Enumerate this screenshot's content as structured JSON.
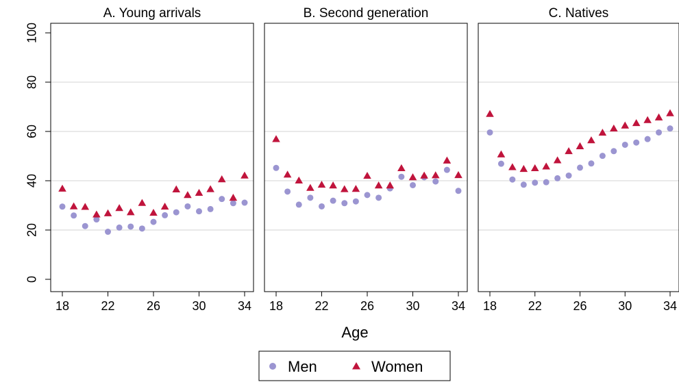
{
  "chart_data": {
    "type": "scatter",
    "xlabel": "Age",
    "ylabel": "",
    "x_ticks": [
      18,
      22,
      26,
      30,
      34
    ],
    "y_ticks": [
      0,
      20,
      40,
      60,
      80,
      100
    ],
    "ylim": [
      0,
      100
    ],
    "xlim": [
      17.3,
      35.3
    ],
    "grid": true,
    "legend_position": "bottom",
    "series_style": [
      {
        "name": "Men",
        "marker": "circle",
        "color": "#9b95d1"
      },
      {
        "name": "Women",
        "marker": "triangle",
        "color": "#c0143c"
      }
    ],
    "panels": [
      {
        "title": "A. Young arrivals",
        "x": [
          18,
          19,
          20,
          21,
          22,
          23,
          24,
          25,
          26,
          27,
          28,
          29,
          30,
          31,
          32,
          33,
          34
        ],
        "series": [
          {
            "name": "Men",
            "values": [
              29.5,
              25.9,
              21.6,
              24.3,
              19.3,
              21.0,
              21.4,
              20.6,
              23.3,
              26.0,
              27.2,
              29.6,
              27.6,
              28.5,
              32.6,
              30.9,
              31.1
            ]
          },
          {
            "name": "Women",
            "values": [
              36.8,
              29.6,
              29.4,
              26.3,
              26.8,
              28.9,
              27.2,
              31.0,
              27.0,
              29.5,
              36.5,
              34.2,
              35.1,
              36.6,
              40.6,
              33.1,
              42.1
            ]
          }
        ]
      },
      {
        "title": "B. Second generation",
        "x": [
          18,
          19,
          20,
          21,
          22,
          23,
          24,
          25,
          26,
          27,
          28,
          29,
          30,
          31,
          32,
          33,
          34
        ],
        "series": [
          {
            "name": "Men",
            "values": [
              45.2,
              35.6,
              30.3,
              33.1,
              29.6,
              31.9,
              30.9,
              31.6,
              34.2,
              33.1,
              36.9,
              41.6,
              38.2,
              41.4,
              39.7,
              44.4,
              35.9
            ]
          },
          {
            "name": "Women",
            "values": [
              56.9,
              42.5,
              40.1,
              37.1,
              38.4,
              38.1,
              36.6,
              36.7,
              42.0,
              38.1,
              38.1,
              45.1,
              41.4,
              42.1,
              42.2,
              48.2,
              42.3
            ]
          }
        ]
      },
      {
        "title": "C. Natives",
        "x": [
          18,
          19,
          20,
          21,
          22,
          23,
          24,
          25,
          26,
          27,
          28,
          29,
          30,
          31,
          32,
          33,
          34
        ],
        "series": [
          {
            "name": "Men",
            "values": [
              59.6,
              46.9,
              40.5,
              38.4,
              39.2,
              39.4,
              41.0,
              42.1,
              45.3,
              47.0,
              50.1,
              52.0,
              54.6,
              55.5,
              56.9,
              59.6,
              61.2
            ]
          },
          {
            "name": "Women",
            "values": [
              67.1,
              50.7,
              45.5,
              44.8,
              45.1,
              45.8,
              48.3,
              52.0,
              54.0,
              56.4,
              59.5,
              61.2,
              62.4,
              63.4,
              64.6,
              65.7,
              67.4
            ]
          }
        ]
      }
    ]
  }
}
